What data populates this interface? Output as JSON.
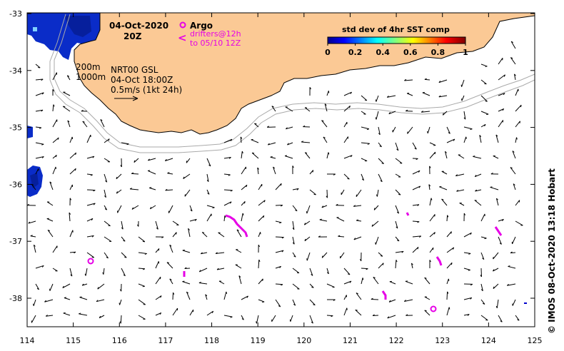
{
  "map": {
    "date": "04-Oct-2020",
    "hour": "20Z",
    "argo_label": "Argo",
    "drifters_label_1": "drifters@12h",
    "drifters_label_2": "to 05/10 12Z",
    "drifter_symbol": "<",
    "isobath_shallow": "200m",
    "isobath_deep": "1000m",
    "product": "NRT00 GSL",
    "product_time": "04-Oct 18:00Z",
    "scale_text": "0.5m/s (1kt 24h)",
    "credit": "© IMOS 08-Oct-2020 13:18 Hobart",
    "colorbar": {
      "title": "std dev of 4hr SST comp",
      "ticks": [
        "0",
        "0.2",
        "0.4",
        "0.6",
        "0.8",
        "1"
      ]
    },
    "x_ticks": [
      "114",
      "115",
      "116",
      "117",
      "118",
      "119",
      "120",
      "121",
      "122",
      "123",
      "124",
      "125"
    ],
    "y_ticks": [
      "-33",
      "-34",
      "-35",
      "-36",
      "-37",
      "-38"
    ],
    "colors": {
      "land": "#fbc995",
      "sst": "#0a2cc8",
      "argo": "#e600e6",
      "isobath": "#aaaaaa"
    }
  }
}
